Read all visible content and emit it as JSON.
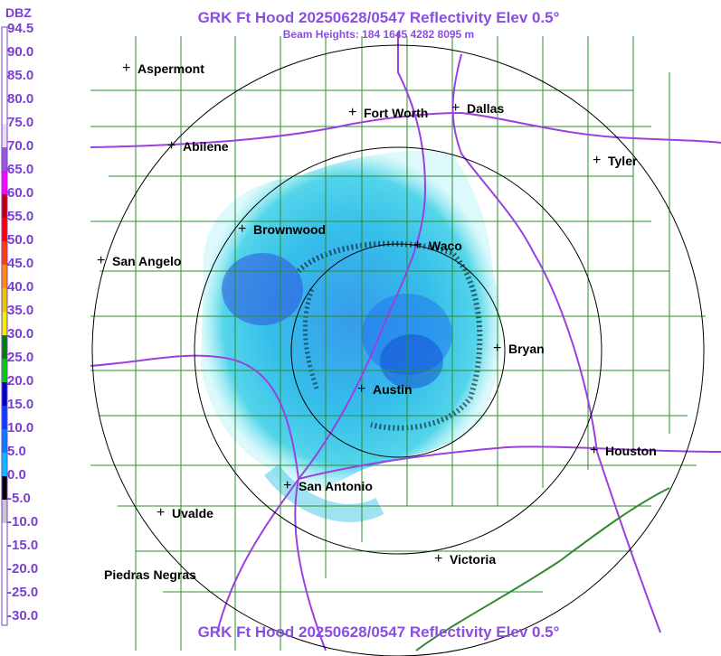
{
  "header": {
    "title": "GRK Ft Hood 20250628/0547 Reflectivity Elev 0.5°",
    "beam_heights": "Beam Heights: 184 1645 4282 8095 m",
    "footer": "GRK Ft Hood 20250628/0547 Reflectivity Elev 0.5°"
  },
  "legend": {
    "unit": "DBZ",
    "values": [
      "94.5",
      "90.0",
      "85.0",
      "80.0",
      "75.0",
      "70.0",
      "65.0",
      "60.0",
      "55.0",
      "50.0",
      "45.0",
      "40.0",
      "35.0",
      "30.0",
      "25.0",
      "20.0",
      "15.0",
      "10.0",
      "5.0",
      "0.0",
      "-5.0",
      "-10.0",
      "-15.0",
      "-20.0",
      "-25.0",
      "-30.0"
    ],
    "colors": [
      "#ffffff",
      "#ffffff",
      "#ffffff",
      "#ffffff",
      "#e8e0f4",
      "#9a5ad8",
      "#ff00ff",
      "#c00000",
      "#ff0000",
      "#ff4000",
      "#ff9000",
      "#e8c800",
      "#f0f000",
      "#008000",
      "#00d000",
      "#0000c0",
      "#0040ff",
      "#0080ff",
      "#00c0ff",
      "#000000",
      "#c8c8c8",
      "#ffffff",
      "#ffffff",
      "#ffffff",
      "#ffffff"
    ]
  },
  "cities": [
    {
      "name": "Aspermont",
      "marker": "+"
    },
    {
      "name": "Fort Worth",
      "marker": "+"
    },
    {
      "name": "Dallas",
      "marker": "+"
    },
    {
      "name": "Abilene",
      "marker": "+"
    },
    {
      "name": "Tyler",
      "marker": "+"
    },
    {
      "name": "Brownwood",
      "marker": "+"
    },
    {
      "name": "Waco",
      "marker": "+"
    },
    {
      "name": "San Angelo",
      "marker": "+"
    },
    {
      "name": "Bryan",
      "marker": "+"
    },
    {
      "name": "Austin",
      "marker": "+"
    },
    {
      "name": "Houston",
      "marker": "+"
    },
    {
      "name": "San Antonio",
      "marker": "+"
    },
    {
      "name": "Uvalde",
      "marker": "+"
    },
    {
      "name": "Victoria",
      "marker": "+"
    },
    {
      "name": "Piedras Negras",
      "marker": ""
    }
  ],
  "colors": {
    "title": "#8a4fe0",
    "county_lines": "#2e8b2e",
    "highways": "#9b40e0",
    "range_rings": "#000000"
  }
}
